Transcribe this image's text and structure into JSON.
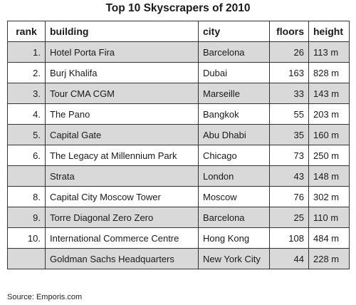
{
  "chart_data": {
    "type": "table",
    "title": "Top 10 Skyscrapers of 2010",
    "columns": [
      "rank",
      "building",
      "city",
      "floors",
      "height"
    ],
    "rows": [
      {
        "rank": "1.",
        "building": "Hotel Porta Fira",
        "city": "Barcelona",
        "floors": "26",
        "height": "113 m"
      },
      {
        "rank": "2.",
        "building": "Burj Khalifa",
        "city": "Dubai",
        "floors": "163",
        "height": "828 m"
      },
      {
        "rank": "3.",
        "building": "Tour CMA CGM",
        "city": "Marseille",
        "floors": "33",
        "height": "143 m"
      },
      {
        "rank": "4.",
        "building": "The Pano",
        "city": "Bangkok",
        "floors": "55",
        "height": "203 m"
      },
      {
        "rank": "5.",
        "building": "Capital Gate",
        "city": "Abu Dhabi",
        "floors": "35",
        "height": "160 m"
      },
      {
        "rank": "6.",
        "building": "The Legacy at Millennium Park",
        "city": "Chicago",
        "floors": "73",
        "height": "250 m"
      },
      {
        "rank": "",
        "building": "Strata",
        "city": "London",
        "floors": "43",
        "height": "148 m"
      },
      {
        "rank": "8.",
        "building": "Capital City Moscow Tower",
        "city": "Moscow",
        "floors": "76",
        "height": "302 m"
      },
      {
        "rank": "9.",
        "building": "Torre Diagonal Zero Zero",
        "city": "Barcelona",
        "floors": "25",
        "height": "110 m"
      },
      {
        "rank": "10.",
        "building": "International Commerce Centre",
        "city": "Hong Kong",
        "floors": "108",
        "height": "484 m"
      },
      {
        "rank": "",
        "building": "Goldman Sachs Headquarters",
        "city": "New York City",
        "floors": "44",
        "height": "228 m"
      }
    ],
    "row_shading": "alternating",
    "shade_color": "#d9d9d9"
  },
  "source": "Source: Emporis.com"
}
